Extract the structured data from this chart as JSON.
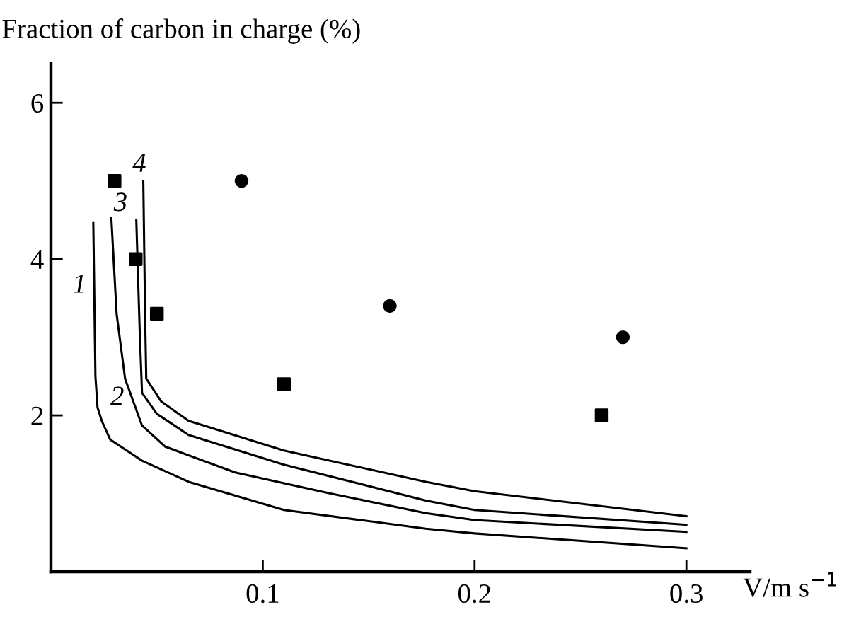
{
  "chart_data": {
    "type": "line",
    "ylabel": "Fraction of carbon in charge (%)",
    "xlabel": "V/m s$^{−1}$",
    "xlim": [
      0,
      0.33
    ],
    "ylim": [
      0,
      6.5
    ],
    "xticks": [
      0.1,
      0.2,
      0.3
    ],
    "yticks": [
      2,
      4,
      6
    ],
    "grid": false,
    "legend": false,
    "series": [
      {
        "name": "1",
        "color": "#000000",
        "marker": "none",
        "x": [
          0.02,
          0.021,
          0.022,
          0.024,
          0.028,
          0.043,
          0.065,
          0.11,
          0.177,
          0.2,
          0.3
        ],
        "values": [
          4.46,
          2.5,
          2.1,
          1.93,
          1.69,
          1.42,
          1.15,
          0.79,
          0.55,
          0.49,
          0.3
        ]
      },
      {
        "name": "2",
        "color": "#000000",
        "marker": "none",
        "x": [
          0.0285,
          0.031,
          0.035,
          0.043,
          0.054,
          0.087,
          0.132,
          0.177,
          0.2,
          0.3
        ],
        "values": [
          4.53,
          3.3,
          2.47,
          1.87,
          1.6,
          1.27,
          1.0,
          0.75,
          0.66,
          0.51
        ]
      },
      {
        "name": "3",
        "color": "#000000",
        "marker": "none",
        "x": [
          0.0403,
          0.042,
          0.043,
          0.05,
          0.065,
          0.11,
          0.177,
          0.2,
          0.3
        ],
        "values": [
          4.5,
          3.0,
          2.29,
          2.02,
          1.75,
          1.37,
          0.91,
          0.79,
          0.6
        ]
      },
      {
        "name": "4",
        "color": "#000000",
        "marker": "none",
        "x": [
          0.0436,
          0.0445,
          0.045,
          0.052,
          0.065,
          0.11,
          0.177,
          0.2,
          0.3
        ],
        "values": [
          5.0,
          3.2,
          2.47,
          2.18,
          1.93,
          1.55,
          1.15,
          1.03,
          0.71
        ]
      },
      {
        "type": "scatter",
        "color": "#000000",
        "marker": "square",
        "x": [
          0.03,
          0.04,
          0.05,
          0.11,
          0.26
        ],
        "values": [
          5.0,
          4.0,
          3.3,
          2.4,
          2.0
        ]
      },
      {
        "type": "scatter",
        "color": "#000000",
        "marker": "circle",
        "x": [
          0.09,
          0.16,
          0.27
        ],
        "values": [
          5.0,
          3.4,
          3.0
        ]
      }
    ]
  }
}
